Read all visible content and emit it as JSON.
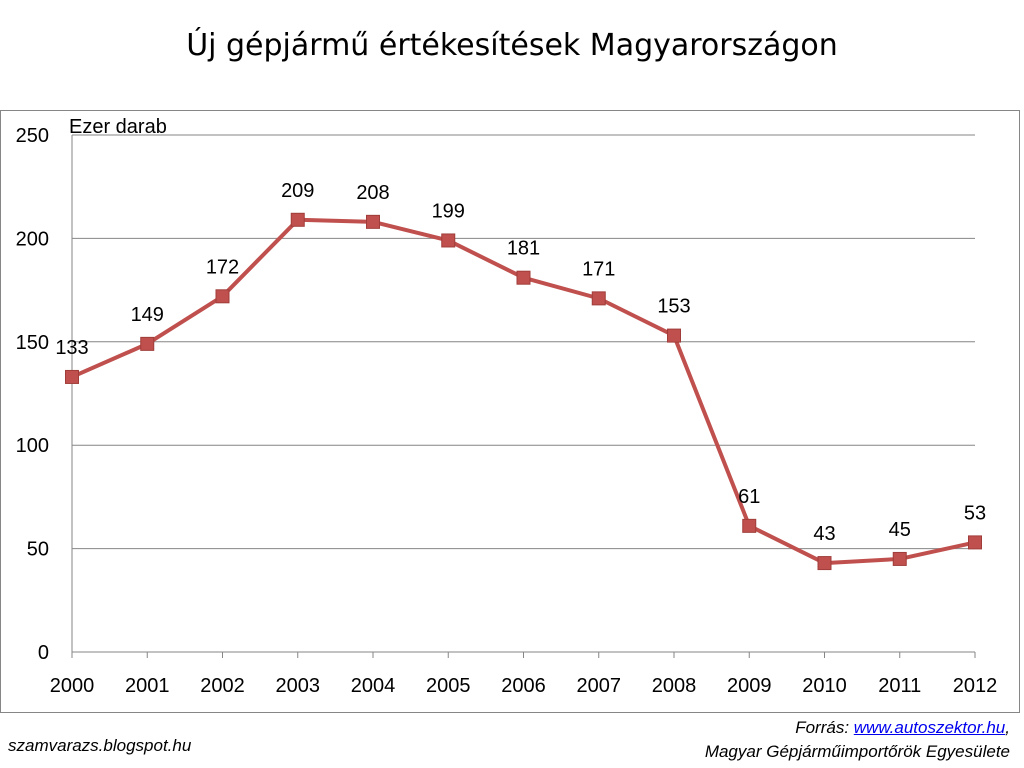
{
  "chart_data": {
    "type": "line",
    "title": "Új gépjármű értékesítések Magyarországon",
    "ylabel": "Ezer darab",
    "xlabel": "",
    "categories": [
      "2000",
      "2001",
      "2002",
      "2003",
      "2004",
      "2005",
      "2006",
      "2007",
      "2008",
      "2009",
      "2010",
      "2011",
      "2012"
    ],
    "series": [
      {
        "values": [
          133,
          149,
          172,
          209,
          208,
          199,
          181,
          171,
          153,
          61,
          43,
          45,
          53
        ],
        "color": "#c0504d"
      }
    ],
    "ylim": [
      0,
      250
    ],
    "yticks": [
      0,
      50,
      100,
      150,
      200,
      250
    ],
    "grid": true,
    "legend": "none"
  },
  "footer": {
    "blog": "szamvarazs.blogspot.hu",
    "source_prefix": "Forrás: ",
    "source_link": "www.autoszektor.hu",
    "source_suffix": ",",
    "source_org": "Magyar Gépjárműimportőrök Egyesülete"
  }
}
